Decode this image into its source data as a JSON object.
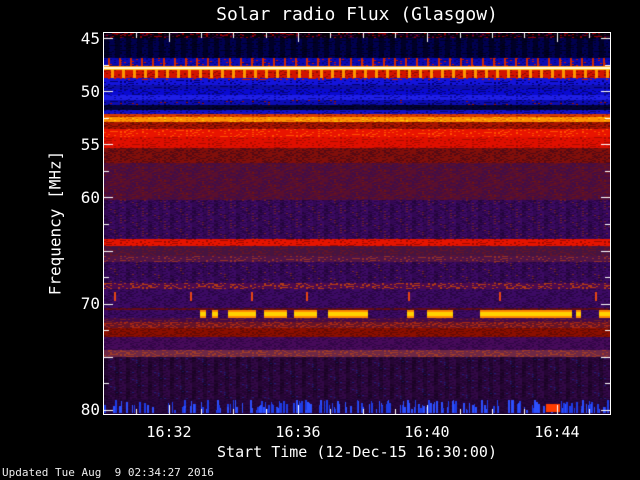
{
  "header": {
    "title": "Solar radio Flux (Glasgow)"
  },
  "footer": {
    "updated": "Updated Tue Aug  9 02:34:27 2016"
  },
  "chart_data": {
    "type": "heatmap",
    "subtype": "radio-spectrogram",
    "title": "Solar radio Flux (Glasgow)",
    "xlabel": "Start Time (12-Dec-15 16:30:00)",
    "ylabel": "Frequency [MHz]",
    "x_date": "12-Dec-15",
    "x_start_time": "16:30:00",
    "x_range_minutes": [
      0,
      15.65
    ],
    "y_range_mhz": [
      44.5,
      80.4
    ],
    "y_axis_direction": "increasing-downward",
    "grid": false,
    "legend": "none",
    "colors": {
      "axis": "#ffffff",
      "text": "#ffffff",
      "background": "#000000"
    },
    "x_ticks": {
      "minor_step_min": 1,
      "major": [
        {
          "label": "16:32",
          "t": 2
        },
        {
          "label": "16:36",
          "t": 6
        },
        {
          "label": "16:40",
          "t": 10
        },
        {
          "label": "16:44",
          "t": 14
        }
      ]
    },
    "y_ticks": {
      "minor_step_mhz": 2.5,
      "major": [
        {
          "label": "45",
          "f": 45
        },
        {
          "label": "50",
          "f": 50
        },
        {
          "label": "55",
          "f": 55
        },
        {
          "label": "60",
          "f": 60
        },
        {
          "label": "",
          "f": 65
        },
        {
          "label": "70",
          "f": 70
        },
        {
          "label": "",
          "f": 75
        },
        {
          "label": "80",
          "f": 80
        }
      ]
    },
    "bands": [
      {
        "f0": 44.5,
        "f1": 45.0,
        "y0": 0.0,
        "y1": 0.0131,
        "base": "#050008",
        "sp": "#960000",
        "spd": 0.22,
        "sp2": "#32003c",
        "sp2d": 0.3
      },
      {
        "f0": 45.0,
        "f1": 46.9,
        "y0": 0.0131,
        "y1": 0.0656,
        "base": "#000050",
        "sp": "#000078",
        "spd": 0.25,
        "sp2": "#000020",
        "sp2d": 0.3,
        "pattern": {
          "type": "vstripes",
          "period": 11,
          "duty": 5,
          "alpha": 0.5
        }
      },
      {
        "f0": 46.9,
        "f1": 47.6,
        "y0": 0.0656,
        "y1": 0.0866,
        "base": "#0a0ab4",
        "sp": "#05057a",
        "spd": 0.3,
        "sp2": "#c81400",
        "sp2d": 0.1,
        "pattern": {
          "type": "pticks",
          "period": 11,
          "w": 2,
          "offset": 4,
          "color": "#d22800"
        }
      },
      {
        "f0": 47.6,
        "f1": 47.75,
        "y0": 0.0866,
        "y1": 0.0905,
        "base": "#ff9b1e"
      },
      {
        "f0": 47.75,
        "f1": 47.9,
        "y0": 0.0905,
        "y1": 0.0945,
        "base": "#ffffdc",
        "label": "bright-white-line-47.8MHz"
      },
      {
        "f0": 47.9,
        "f1": 48.05,
        "y0": 0.0945,
        "y1": 0.0984,
        "base": "#ffc81e"
      },
      {
        "f0": 48.05,
        "f1": 48.7,
        "y0": 0.0984,
        "y1": 0.1181,
        "base": "#d21400",
        "sp": "#8c0a00",
        "spd": 0.25,
        "pattern": {
          "type": "pticks",
          "period": 11,
          "w": 3,
          "offset": 7,
          "color": "#ff9600"
        }
      },
      {
        "f0": 48.7,
        "f1": 48.9,
        "y0": 0.1181,
        "y1": 0.1234,
        "base": "#1414d2",
        "sp": "#c81400",
        "spd": 0.3
      },
      {
        "f0": 48.9,
        "f1": 49.4,
        "y0": 0.1234,
        "y1": 0.1365,
        "base": "#1414dc",
        "sp": "#00006e",
        "spd": 0.3
      },
      {
        "f0": 49.4,
        "f1": 49.8,
        "y0": 0.1365,
        "y1": 0.147,
        "base": "#0f0faa",
        "sp": "#000064",
        "spd": 0.25
      },
      {
        "f0": 49.8,
        "f1": 50.3,
        "y0": 0.147,
        "y1": 0.1627,
        "base": "#0a0ad2",
        "sp": "#040478",
        "spd": 0.35
      },
      {
        "f0": 50.3,
        "f1": 50.8,
        "y0": 0.1627,
        "y1": 0.1759,
        "base": "#1e1ee6",
        "sp": "#0a0aa0",
        "spd": 0.25
      },
      {
        "f0": 50.8,
        "f1": 51.3,
        "y0": 0.1759,
        "y1": 0.189,
        "base": "#0c0cb4",
        "sp": "#03035a",
        "spd": 0.3,
        "sp2": "#961400",
        "sp2d": 0.06
      },
      {
        "f0": 51.3,
        "f1": 51.8,
        "y0": 0.189,
        "y1": 0.2021,
        "base": "#020238",
        "sp": "#000018",
        "spd": 0.3
      },
      {
        "f0": 51.8,
        "f1": 52.1,
        "y0": 0.2021,
        "y1": 0.2126,
        "base": "#1212c8",
        "sp": "#05057a",
        "spd": 0.3
      },
      {
        "f0": 52.1,
        "f1": 52.4,
        "y0": 0.2126,
        "y1": 0.2205,
        "base": "#dc3c00",
        "sp": "#a01e00",
        "spd": 0.3
      },
      {
        "f0": 52.4,
        "f1": 52.9,
        "y0": 0.2205,
        "y1": 0.2336,
        "base": "#ff9100",
        "sp": "#e66400",
        "spd": 0.25,
        "sp2": "#ffc800",
        "sp2d": 0.15
      },
      {
        "f0": 52.9,
        "f1": 53.5,
        "y0": 0.2336,
        "y1": 0.252,
        "base": "#aa1400",
        "sp": "#6e0a00",
        "spd": 0.4
      },
      {
        "f0": 53.5,
        "f1": 54.3,
        "y0": 0.252,
        "y1": 0.273,
        "base": "#e91400",
        "sp": "#ff5000",
        "spd": 0.25
      },
      {
        "f0": 54.3,
        "f1": 55.3,
        "y0": 0.273,
        "y1": 0.3018,
        "base": "#e00f00",
        "sp": "#aa0a00",
        "spd": 0.3,
        "label": "strong-band-55MHz"
      },
      {
        "f0": 55.3,
        "f1": 56.7,
        "y0": 0.3018,
        "y1": 0.3412,
        "base": "#820f0a",
        "sp": "#550a14",
        "spd": 0.45
      },
      {
        "f0": 56.7,
        "f1": 60.2,
        "y0": 0.3412,
        "y1": 0.4383,
        "base": "#5a0f2d",
        "sp": "#420d46",
        "spd": 0.5,
        "sp2": "#6e1414",
        "sp2d": 0.15
      },
      {
        "f0": 60.2,
        "f1": 63.9,
        "y0": 0.4383,
        "y1": 0.5407,
        "base": "#3c0a64",
        "sp": "#2a0646",
        "spd": 0.45,
        "sp2": "#6e1e32",
        "sp2d": 0.08,
        "pattern": {
          "type": "vstripes",
          "period": 11,
          "duty": 4,
          "alpha": 0.15
        }
      },
      {
        "f0": 63.9,
        "f1": 64.6,
        "y0": 0.5407,
        "y1": 0.5591,
        "base": "#e61400",
        "sp": "#a00a00",
        "spd": 0.3,
        "label": "narrow-band-64.5MHz"
      },
      {
        "f0": 64.6,
        "f1": 65.5,
        "y0": 0.5591,
        "y1": 0.5853,
        "base": "#461440",
        "sp": "#641428",
        "spd": 0.35
      },
      {
        "f0": 65.5,
        "f1": 66.1,
        "y0": 0.5853,
        "y1": 0.601,
        "base": "#501446",
        "sp": "#963228",
        "spd": 0.3
      },
      {
        "f0": 66.1,
        "f1": 68.1,
        "y0": 0.601,
        "y1": 0.6562,
        "base": "#3c0a64",
        "sp": "#2a0646",
        "spd": 0.45,
        "sp2": "#782828",
        "sp2d": 0.05,
        "pattern": {
          "type": "vstripes",
          "period": 11,
          "duty": 4,
          "alpha": 0.15
        }
      },
      {
        "f0": 68.1,
        "f1": 68.6,
        "y0": 0.6562,
        "y1": 0.6719,
        "base": "#4b0a50",
        "sp": "#b43c14",
        "spd": 0.35
      },
      {
        "f0": 68.6,
        "f1": 68.9,
        "y0": 0.6719,
        "y1": 0.6798,
        "base": "#3c0a64",
        "sp": "#2a0646",
        "spd": 0.45
      },
      {
        "f0": 68.9,
        "f1": 69.7,
        "y0": 0.6798,
        "y1": 0.7034,
        "base": "#3c0a64",
        "sp": "#2a0646",
        "spd": 0.45,
        "pattern": {
          "type": "xticklist",
          "xs": [
            0.02,
            0.17,
            0.29,
            0.4,
            0.6,
            0.78,
            0.97
          ],
          "w": 2,
          "color": "#e64614"
        }
      },
      {
        "f0": 69.7,
        "f1": 70.4,
        "y0": 0.7034,
        "y1": 0.7218,
        "base": "#3c0a64",
        "sp": "#2a0646",
        "spd": 0.45
      },
      {
        "f0": 70.4,
        "f1": 70.6,
        "y0": 0.7218,
        "y1": 0.727,
        "base": "#640a14",
        "sp": "#3c0a28",
        "spd": 0.35
      },
      {
        "f0": 70.6,
        "f1": 71.4,
        "y0": 0.727,
        "y1": 0.748,
        "base": "#3c0a64",
        "sp": "#2a0646",
        "spd": 0.4,
        "label": "intermittent-rfi-71MHz",
        "pattern": {
          "type": "segments",
          "core": "#ffd200",
          "edge": "#ff8c00",
          "list": [
            [
              0.19,
              0.201
            ],
            [
              0.214,
              0.226
            ],
            [
              0.246,
              0.301
            ],
            [
              0.317,
              0.362
            ],
            [
              0.376,
              0.421
            ],
            [
              0.442,
              0.522
            ],
            [
              0.598,
              0.613
            ],
            [
              0.639,
              0.689
            ],
            [
              0.744,
              0.924
            ],
            [
              0.932,
              0.942
            ],
            [
              0.978,
              1.0
            ]
          ]
        }
      },
      {
        "f0": 71.4,
        "f1": 71.7,
        "y0": 0.748,
        "y1": 0.7585,
        "base": "#460a46",
        "sp": "#6e1e28",
        "spd": 0.3
      },
      {
        "f0": 71.7,
        "f1": 72.3,
        "y0": 0.7585,
        "y1": 0.7743,
        "base": "#641428",
        "sp": "#aa2814",
        "spd": 0.4
      },
      {
        "f0": 72.3,
        "f1": 73.1,
        "y0": 0.7743,
        "y1": 0.7979,
        "base": "#8c0f00",
        "sp": "#640a05",
        "spd": 0.4,
        "label": "dark-red-band-72.7MHz"
      },
      {
        "f0": 73.1,
        "f1": 74.4,
        "y0": 0.7979,
        "y1": 0.832,
        "base": "#460a5a",
        "sp": "#320646",
        "spd": 0.45
      },
      {
        "f0": 74.4,
        "f1": 75.0,
        "y0": 0.832,
        "y1": 0.8504,
        "base": "#6e2846",
        "sp": "#a03c28",
        "spd": 0.35
      },
      {
        "f0": 75.0,
        "f1": 79.0,
        "y0": 0.8504,
        "y1": 0.9606,
        "base": "#320846",
        "sp": "#230532",
        "spd": 0.5,
        "sp2": "#20207a",
        "sp2d": 0.06,
        "pattern": {
          "type": "vstripes",
          "period": 11,
          "duty": 4,
          "alpha": 0.25
        }
      },
      {
        "f0": 79.0,
        "f1": 80.4,
        "y0": 0.9606,
        "y1": 1.0,
        "base": "#28063c",
        "sp": "#1c0430",
        "spd": 0.4,
        "label": "blue-pulsed-band-80MHz",
        "pattern": {
          "type": "vdashes",
          "count": 420,
          "colors": [
            "#2d50ff",
            "#1e3ce6"
          ]
        },
        "spots": [
          [
            0.873,
            0.9,
            "#ff3c00"
          ]
        ]
      }
    ]
  }
}
